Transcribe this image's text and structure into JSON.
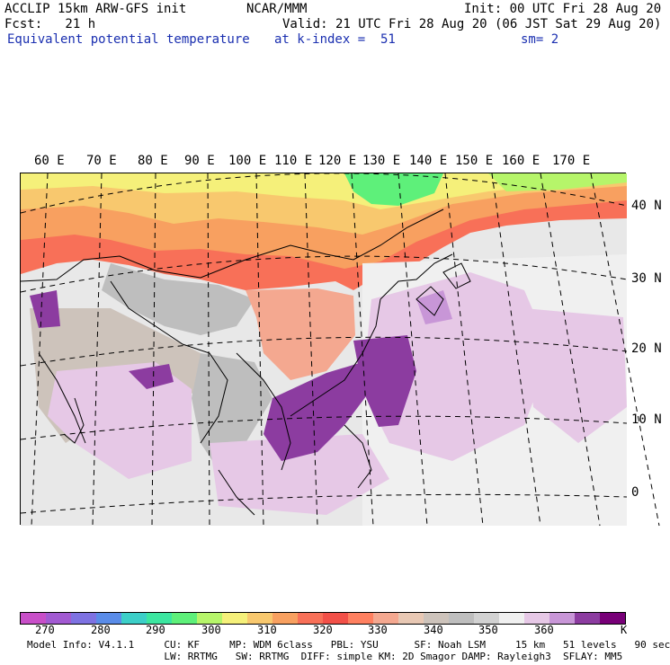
{
  "header": {
    "line1_left": "ACCLIP 15km ARW-GFS init",
    "line1_center": "NCAR/MMM",
    "line1_right": "Init: 00 UTC Fri 28 Aug 20",
    "line2_left": "Fcst:   21 h",
    "line2_right": "Valid: 21 UTC Fri 28 Aug 20 (06 JST Sat 29 Aug 20)",
    "line3_left": "Equivalent potential temperature",
    "line3_center": "at k-index =  51",
    "line3_right": "sm= 2"
  },
  "map": {
    "lon_labels": [
      "60 E",
      "70 E",
      "80 E",
      "90 E",
      "100 E",
      "110 E",
      "120 E",
      "130 E",
      "140 E",
      "150 E",
      "160 E",
      "170 E"
    ],
    "lat_labels": [
      "40 N",
      "30 N",
      "20 N",
      "10 N",
      "0"
    ]
  },
  "colorbar": {
    "colors": [
      "#c84fc8",
      "#a25ad2",
      "#7e72e2",
      "#5a8ce8",
      "#3ccfc8",
      "#3ce6a0",
      "#5ef07a",
      "#b6f56a",
      "#f5f07a",
      "#f8c86e",
      "#f8a060",
      "#f87058",
      "#f25048",
      "#ff8060",
      "#f4a890",
      "#e8c8b4",
      "#cdc3bb",
      "#bebebe",
      "#d2d2d2",
      "#f0f0f0",
      "#e6c8e6",
      "#c896d7",
      "#8c3ca0",
      "#780078"
    ],
    "labels": [
      "270",
      "280",
      "290",
      "300",
      "310",
      "320",
      "330",
      "340",
      "350",
      "360"
    ],
    "unit": "K"
  },
  "model_info": {
    "line1": "Model Info: V4.1.1     CU: KF     MP: WDM 6class   PBL: YSU      SF: Noah LSM     15 km   51 levels   90 sec",
    "line2": "                       LW: RRTMG   SW: RRTMG  DIFF: simple KM: 2D Smagor DAMP: Rayleigh3  SFLAY: MM5"
  }
}
